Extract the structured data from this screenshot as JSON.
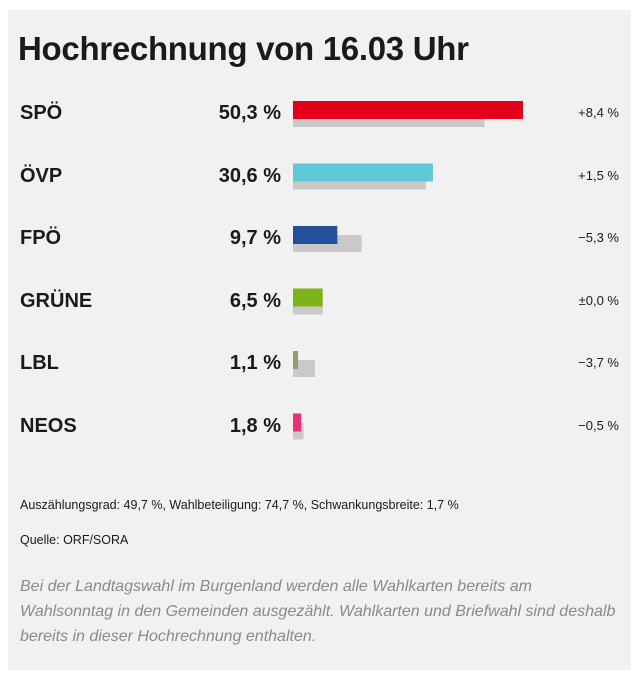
{
  "header": {
    "title": "Hochrechnung von 16.03 Uhr"
  },
  "chart_data": {
    "type": "bar",
    "categories": [
      "SPÖ",
      "ÖVP",
      "FPÖ",
      "GRÜNE",
      "LBL",
      "NEOS"
    ],
    "value_labels": [
      "50,3 %",
      "30,6 %",
      "9,7 %",
      "6,5 %",
      "1,1 %",
      "1,8 %"
    ],
    "values": [
      50.3,
      30.6,
      9.7,
      6.5,
      1.1,
      1.8
    ],
    "previous_values": [
      41.9,
      29.1,
      15.0,
      6.5,
      4.8,
      2.3
    ],
    "change_labels": [
      "+8,4 %",
      "+1,5 %",
      "−5,3 %",
      "±0,0 %",
      "−3,7 %",
      "−0,5 %"
    ],
    "colors": [
      "#e2001a",
      "#5ec8d6",
      "#23509a",
      "#7db31a",
      "#9a9a6a",
      "#e5317a"
    ],
    "previous_color": "#c9c9c9",
    "xlim": [
      0,
      51
    ]
  },
  "footer": {
    "stats": "Auszählungsgrad: 49,7 %, Wahlbeteiligung: 74,7 %, Schwankungsbreite: 1,7 %",
    "source": "Quelle: ORF/SORA",
    "note": "Bei der Landtagswahl im Burgenland werden alle Wahlkarten bereits am Wahlsonntag in den Gemeinden ausgezählt. Wahlkarten und Briefwahl sind deshalb bereits in dieser Hochrechnung enthalten."
  }
}
